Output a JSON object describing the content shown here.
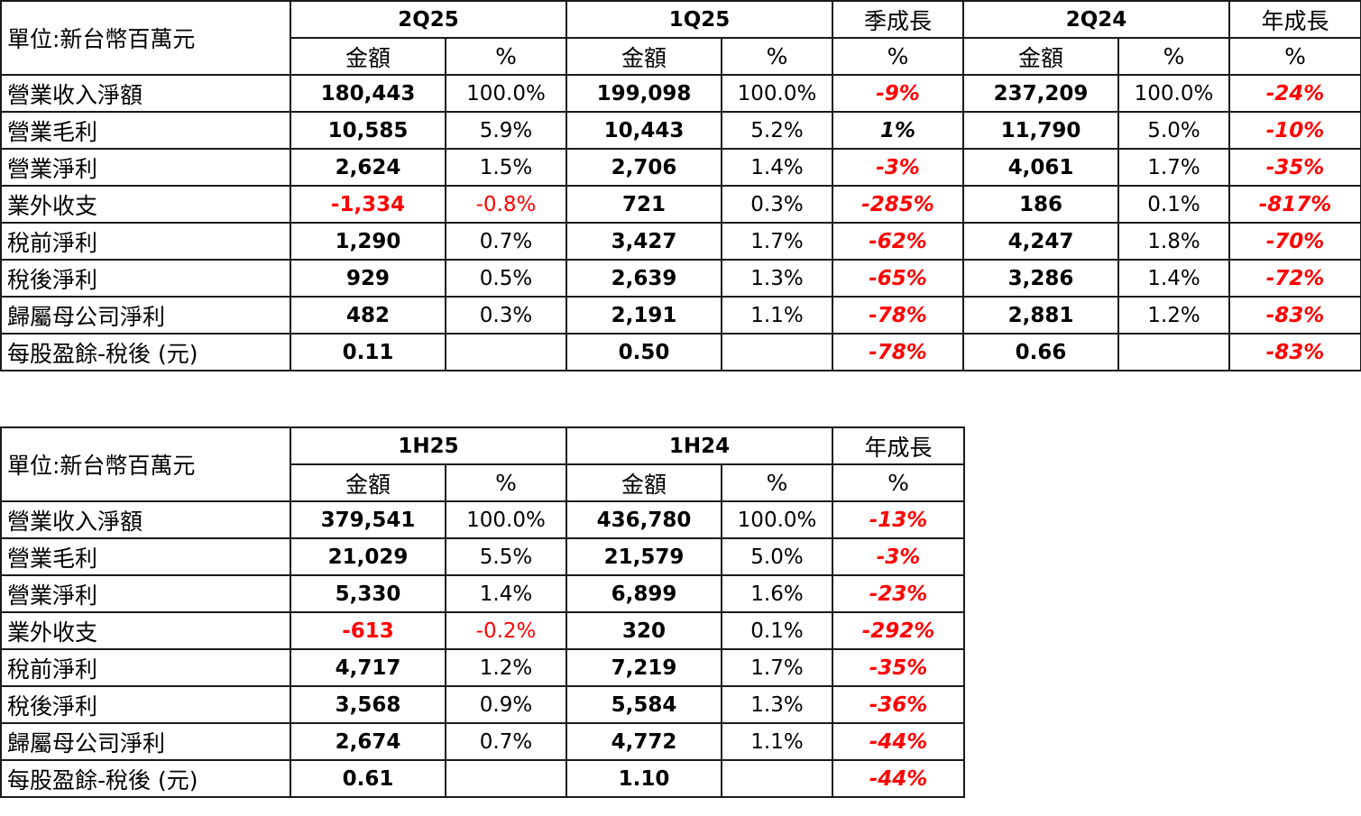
{
  "unit_label": "單位:新台幣百萬元",
  "amount_label": "金額",
  "percent_label": "%",
  "quarterly": {
    "periods": [
      "2Q25",
      "1Q25",
      "2Q24"
    ],
    "qoq_label": "季成長",
    "yoy_label": "年成長",
    "rows": [
      {
        "label": "營業收入淨額",
        "a": "180,443",
        "ap": "100.0%",
        "b": "199,098",
        "bp": "100.0%",
        "qoq": "-9%",
        "c": "237,209",
        "cp": "100.0%",
        "yoy": "-24%"
      },
      {
        "label": "營業毛利",
        "a": "10,585",
        "ap": "5.9%",
        "b": "10,443",
        "bp": "5.2%",
        "qoq": "1%",
        "c": "11,790",
        "cp": "5.0%",
        "yoy": "-10%"
      },
      {
        "label": "營業淨利",
        "a": "2,624",
        "ap": "1.5%",
        "b": "2,706",
        "bp": "1.4%",
        "qoq": "-3%",
        "c": "4,061",
        "cp": "1.7%",
        "yoy": "-35%"
      },
      {
        "label": "業外收支",
        "a": "-1,334",
        "ap": "-0.8%",
        "b": "721",
        "bp": "0.3%",
        "qoq": "-285%",
        "c": "186",
        "cp": "0.1%",
        "yoy": "-817%"
      },
      {
        "label": "稅前淨利",
        "a": "1,290",
        "ap": "0.7%",
        "b": "3,427",
        "bp": "1.7%",
        "qoq": "-62%",
        "c": "4,247",
        "cp": "1.8%",
        "yoy": "-70%"
      },
      {
        "label": "稅後淨利",
        "a": "929",
        "ap": "0.5%",
        "b": "2,639",
        "bp": "1.3%",
        "qoq": "-65%",
        "c": "3,286",
        "cp": "1.4%",
        "yoy": "-72%"
      },
      {
        "label": "歸屬母公司淨利",
        "a": "482",
        "ap": "0.3%",
        "b": "2,191",
        "bp": "1.1%",
        "qoq": "-78%",
        "c": "2,881",
        "cp": "1.2%",
        "yoy": "-83%"
      },
      {
        "label": "每股盈餘-稅後 (元)",
        "a": "0.11",
        "ap": "",
        "b": "0.50",
        "bp": "",
        "qoq": "-78%",
        "c": "0.66",
        "cp": "",
        "yoy": "-83%"
      }
    ]
  },
  "half_year": {
    "periods": [
      "1H25",
      "1H24"
    ],
    "yoy_label": "年成長",
    "rows": [
      {
        "label": "營業收入淨額",
        "a": "379,541",
        "ap": "100.0%",
        "b": "436,780",
        "bp": "100.0%",
        "yoy": "-13%"
      },
      {
        "label": "營業毛利",
        "a": "21,029",
        "ap": "5.5%",
        "b": "21,579",
        "bp": "5.0%",
        "yoy": "-3%"
      },
      {
        "label": "營業淨利",
        "a": "5,330",
        "ap": "1.4%",
        "b": "6,899",
        "bp": "1.6%",
        "yoy": "-23%"
      },
      {
        "label": "業外收支",
        "a": "-613",
        "ap": "-0.2%",
        "b": "320",
        "bp": "0.1%",
        "yoy": "-292%"
      },
      {
        "label": "稅前淨利",
        "a": "4,717",
        "ap": "1.2%",
        "b": "7,219",
        "bp": "1.7%",
        "yoy": "-35%"
      },
      {
        "label": "稅後淨利",
        "a": "3,568",
        "ap": "0.9%",
        "b": "5,584",
        "bp": "1.3%",
        "yoy": "-36%"
      },
      {
        "label": "歸屬母公司淨利",
        "a": "2,674",
        "ap": "0.7%",
        "b": "4,772",
        "bp": "1.1%",
        "yoy": "-44%"
      },
      {
        "label": "每股盈餘-稅後 (元)",
        "a": "0.61",
        "ap": "",
        "b": "1.10",
        "bp": "",
        "yoy": "-44%"
      }
    ]
  }
}
